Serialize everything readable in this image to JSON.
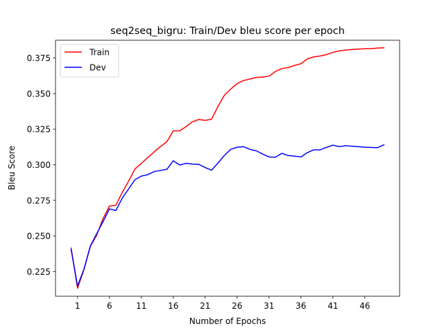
{
  "chart_data": {
    "type": "line",
    "title": "seq2seq_bigru: Train/Dev bleu score per epoch",
    "xlabel": "Number of Epochs",
    "ylabel": "Bleu Score",
    "xlim": [
      -2.45,
      51.45
    ],
    "ylim": [
      0.2076,
      0.3875
    ],
    "xticks": [
      1,
      6,
      11,
      16,
      21,
      26,
      31,
      36,
      41,
      46
    ],
    "yticks": [
      0.225,
      0.25,
      0.275,
      0.3,
      0.325,
      0.35,
      0.375
    ],
    "ytick_labels": [
      "0.225",
      "0.250",
      "0.275",
      "0.300",
      "0.325",
      "0.350",
      "0.375"
    ],
    "grid": false,
    "legend_position": "upper-left",
    "x": [
      0,
      1,
      2,
      3,
      4,
      5,
      6,
      7,
      8,
      9,
      10,
      11,
      12,
      13,
      14,
      15,
      16,
      17,
      18,
      19,
      20,
      21,
      22,
      23,
      24,
      25,
      26,
      27,
      28,
      29,
      30,
      31,
      32,
      33,
      34,
      35,
      36,
      37,
      38,
      39,
      40,
      41,
      42,
      43,
      44,
      45,
      46,
      47,
      48,
      49
    ],
    "series": [
      {
        "name": "Train",
        "color": "#ff0000",
        "values": [
          0.2415,
          0.2132,
          0.2262,
          0.2425,
          0.2505,
          0.2622,
          0.271,
          0.2715,
          0.2805,
          0.2885,
          0.297,
          0.301,
          0.305,
          0.309,
          0.3128,
          0.3162,
          0.3238,
          0.3238,
          0.3268,
          0.3302,
          0.3318,
          0.3312,
          0.332,
          0.341,
          0.3488,
          0.3532,
          0.357,
          0.3592,
          0.3602,
          0.3614,
          0.3616,
          0.3623,
          0.3655,
          0.3676,
          0.3683,
          0.3698,
          0.371,
          0.3744,
          0.3758,
          0.3764,
          0.3774,
          0.379,
          0.38,
          0.3806,
          0.381,
          0.3813,
          0.3815,
          0.3816,
          0.382,
          0.3822
        ]
      },
      {
        "name": "Dev",
        "color": "#0000ff",
        "values": [
          0.2405,
          0.2148,
          0.2265,
          0.2428,
          0.2515,
          0.26,
          0.269,
          0.2678,
          0.2765,
          0.283,
          0.2895,
          0.292,
          0.293,
          0.2952,
          0.296,
          0.2968,
          0.3028,
          0.2998,
          0.301,
          0.3005,
          0.3003,
          0.298,
          0.2962,
          0.3012,
          0.3065,
          0.3108,
          0.3123,
          0.3127,
          0.3108,
          0.3098,
          0.3075,
          0.3055,
          0.3053,
          0.308,
          0.3065,
          0.306,
          0.3055,
          0.3085,
          0.3105,
          0.3105,
          0.3122,
          0.3138,
          0.3127,
          0.3134,
          0.313,
          0.3127,
          0.3123,
          0.3122,
          0.312,
          0.314
        ]
      }
    ]
  }
}
